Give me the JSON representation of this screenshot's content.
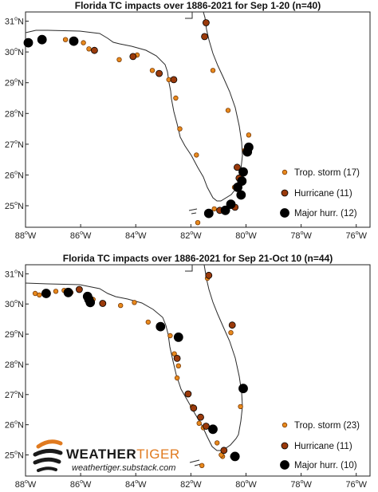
{
  "colors": {
    "storm_fill": "#e8891c",
    "storm_stroke": "#7a3b08",
    "hurricane_fill": "#9a3a0b",
    "major_fill": "#000000",
    "coast": "#2a2a2a",
    "brand_orange": "#e07a1f"
  },
  "watermark": {
    "brand_part1": "WEATHER",
    "brand_part2": "TIGER",
    "url": "weathertiger.substack.com",
    "logo_icon": "tiger-stripes-icon"
  },
  "chart_data": [
    {
      "type": "scatter",
      "title": "Florida TC impacts over 1886-2021 for Sep 1-20 (n=40)",
      "xlim": [
        -88,
        -75.5
      ],
      "ylim": [
        24.3,
        31.3
      ],
      "xticks": [
        -88,
        -86,
        -84,
        -82,
        -80,
        -78,
        -76
      ],
      "yticks": [
        25,
        26,
        27,
        28,
        29,
        30,
        31
      ],
      "xtick_labels": [
        "88",
        "86",
        "84",
        "82",
        "80",
        "78",
        "76"
      ],
      "ytick_labels": [
        "25",
        "26",
        "27",
        "28",
        "29",
        "30",
        "31"
      ],
      "tick_suffix_x": "W",
      "tick_suffix_y": "N",
      "degree_mark": "o",
      "legend_position": "lower-right",
      "legend": [
        "Trop. storm (17)",
        "Hurricane (11)",
        "Major hurr. (12)"
      ],
      "series": [
        {
          "name": "Trop. storm (17)",
          "points": [
            [
              -86.55,
              30.4
            ],
            [
              -85.9,
              30.3
            ],
            [
              -85.7,
              30.1
            ],
            [
              -84.6,
              29.75
            ],
            [
              -83.95,
              29.9
            ],
            [
              -83.4,
              29.4
            ],
            [
              -82.8,
              29.1
            ],
            [
              -82.55,
              28.5
            ],
            [
              -82.4,
              27.5
            ],
            [
              -81.8,
              26.65
            ],
            [
              -81.15,
              24.9
            ],
            [
              -81.75,
              24.45
            ],
            [
              -80.05,
              26.8
            ],
            [
              -80.65,
              28.1
            ],
            [
              -81.2,
              29.4
            ],
            [
              -80.42,
              25.6
            ],
            [
              -79.9,
              27.3
            ]
          ]
        },
        {
          "name": "Hurricane (11)",
          "points": [
            [
              -86.25,
              30.38
            ],
            [
              -85.5,
              30.05
            ],
            [
              -84.1,
              29.85
            ],
            [
              -83.15,
              29.3
            ],
            [
              -82.62,
              29.1
            ],
            [
              -80.4,
              24.95
            ],
            [
              -80.95,
              24.85
            ],
            [
              -81.5,
              30.5
            ],
            [
              -81.45,
              30.95
            ],
            [
              -80.25,
              25.9
            ],
            [
              -80.32,
              26.25
            ]
          ]
        },
        {
          "name": "Major hurr. (12)",
          "points": [
            [
              -87.9,
              30.3
            ],
            [
              -87.4,
              30.4
            ],
            [
              -86.25,
              30.35
            ],
            [
              -79.9,
              26.9
            ],
            [
              -79.95,
              26.75
            ],
            [
              -80.1,
              26.1
            ],
            [
              -80.3,
              25.6
            ],
            [
              -80.18,
              25.35
            ],
            [
              -81.35,
              24.75
            ],
            [
              -80.75,
              24.85
            ],
            [
              -80.55,
              25.05
            ],
            [
              -80.15,
              25.8
            ]
          ]
        }
      ]
    },
    {
      "type": "scatter",
      "title": "Florida TC impacts over 1886-2021 for Sep 21-Oct 10 (n=44)",
      "xlim": [
        -88,
        -75.5
      ],
      "ylim": [
        24.3,
        31.3
      ],
      "xticks": [
        -88,
        -86,
        -84,
        -82,
        -80,
        -78,
        -76
      ],
      "yticks": [
        25,
        26,
        27,
        28,
        29,
        30,
        31
      ],
      "xtick_labels": [
        "88",
        "86",
        "84",
        "82",
        "80",
        "78",
        "76"
      ],
      "ytick_labels": [
        "25",
        "26",
        "27",
        "28",
        "29",
        "30",
        "31"
      ],
      "tick_suffix_x": "W",
      "tick_suffix_y": "N",
      "degree_mark": "o",
      "legend_position": "lower-right",
      "legend": [
        "Trop. storm (23)",
        "Hurricane (11)",
        "Major hurr. (10)"
      ],
      "series": [
        {
          "name": "Trop. storm (23)",
          "points": [
            [
              -87.65,
              30.35
            ],
            [
              -87.5,
              30.3
            ],
            [
              -86.9,
              30.42
            ],
            [
              -86.6,
              30.45
            ],
            [
              -86.35,
              30.38
            ],
            [
              -85.55,
              30.15
            ],
            [
              -84.55,
              29.95
            ],
            [
              -84.05,
              30.05
            ],
            [
              -83.55,
              29.4
            ],
            [
              -82.75,
              28.95
            ],
            [
              -82.6,
              28.35
            ],
            [
              -82.45,
              27.95
            ],
            [
              -82.5,
              27.55
            ],
            [
              -81.95,
              26.6
            ],
            [
              -81.7,
              26.05
            ],
            [
              -81.55,
              25.9
            ],
            [
              -81.05,
              25.4
            ],
            [
              -80.85,
              24.95
            ],
            [
              -81.6,
              24.65
            ],
            [
              -80.2,
              26.6
            ],
            [
              -80.55,
              29.05
            ],
            [
              -81.4,
              30.85
            ],
            [
              -80.9,
              25.0
            ]
          ]
        },
        {
          "name": "Hurricane (11)",
          "points": [
            [
              -86.05,
              30.48
            ],
            [
              -85.2,
              30.02
            ],
            [
              -82.5,
              28.2
            ],
            [
              -82.1,
              27.02
            ],
            [
              -81.9,
              26.55
            ],
            [
              -81.65,
              26.25
            ],
            [
              -81.45,
              25.95
            ],
            [
              -80.8,
              25.15
            ],
            [
              -80.45,
              24.95
            ],
            [
              -81.35,
              30.95
            ],
            [
              -80.5,
              29.3
            ]
          ]
        },
        {
          "name": "Major hurr. (10)",
          "points": [
            [
              -87.25,
              30.35
            ],
            [
              -86.45,
              30.38
            ],
            [
              -85.75,
              30.25
            ],
            [
              -85.7,
              30.15
            ],
            [
              -85.65,
              30.05
            ],
            [
              -83.1,
              29.25
            ],
            [
              -82.45,
              28.9
            ],
            [
              -80.1,
              27.2
            ],
            [
              -81.2,
              25.85
            ],
            [
              -80.4,
              24.95
            ]
          ]
        }
      ]
    }
  ]
}
